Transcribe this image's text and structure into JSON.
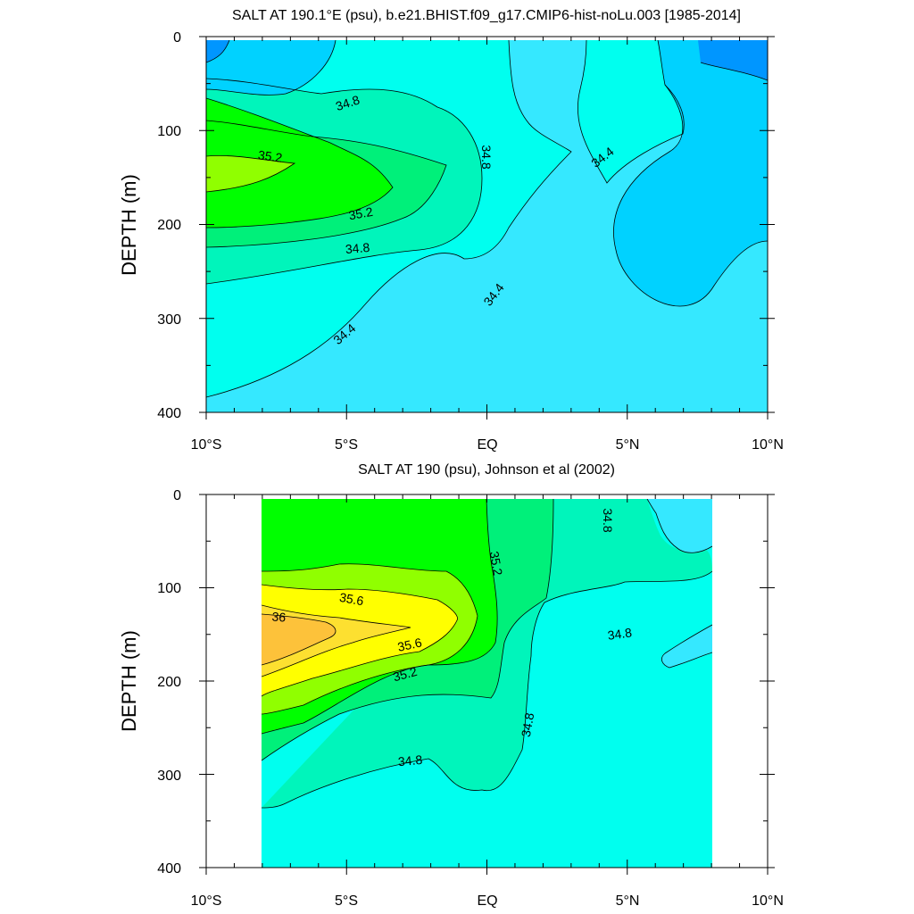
{
  "chart_data": [
    {
      "type": "contour",
      "title": "SALT AT 190.1°E (psu), b.e21.BHIST.f09_g17.CMIP6-hist-noLu.003 [1985-2014]",
      "xlabel": "",
      "ylabel": "DEPTH (m)",
      "xlim": [
        -10,
        10
      ],
      "ylim": [
        400,
        0
      ],
      "x_ticks": [
        "10°S",
        "5°S",
        "EQ",
        "5°N",
        "10°N"
      ],
      "y_ticks": [
        "0",
        "100",
        "200",
        "300",
        "400"
      ],
      "contour_interval": 0.2,
      "contour_labels": [
        {
          "text": "34.8",
          "x": -5,
          "depth": 68
        },
        {
          "text": "35.2",
          "x": -7.7,
          "depth": 126
        },
        {
          "text": "34.8",
          "x": -0.2,
          "depth": 125
        },
        {
          "text": "34.4",
          "x": 4.3,
          "depth": 124
        },
        {
          "text": "35.2",
          "x": -4.5,
          "depth": 190
        },
        {
          "text": "34.8",
          "x": -4.6,
          "depth": 226
        },
        {
          "text": "34.4",
          "x": 0.4,
          "depth": 277
        },
        {
          "text": "34.4",
          "x": -5,
          "depth": 315
        }
      ]
    },
    {
      "type": "contour",
      "title": "SALT AT 190 (psu), Johnson et al (2002)",
      "xlabel": "",
      "ylabel": "DEPTH (m)",
      "xlim": [
        -10,
        10
      ],
      "ylim": [
        400,
        0
      ],
      "data_extent_x": [
        -8,
        8
      ],
      "x_ticks": [
        "10°S",
        "5°S",
        "EQ",
        "5°N",
        "10°N"
      ],
      "y_ticks": [
        "0",
        "100",
        "200",
        "300",
        "400"
      ],
      "contour_interval": 0.2,
      "contour_labels": [
        {
          "text": "34.8",
          "x": 4.2,
          "depth": 30
        },
        {
          "text": "35.2",
          "x": 0.1,
          "depth": 75
        },
        {
          "text": "35.6",
          "x": -4.8,
          "depth": 116
        },
        {
          "text": "36",
          "x": -7.3,
          "depth": 138
        },
        {
          "text": "34.8",
          "x": 4.8,
          "depth": 158
        },
        {
          "text": "35.6",
          "x": -2.7,
          "depth": 170
        },
        {
          "text": "35.2",
          "x": -2.9,
          "depth": 196
        },
        {
          "text": "34.8",
          "x": 1.6,
          "depth": 248
        },
        {
          "text": "34.8",
          "x": -2.7,
          "depth": 295
        }
      ]
    }
  ],
  "palette": {
    "s34.0": "#0096ff",
    "s34.2": "#00d2ff",
    "s34.4": "#35e8ff",
    "s34.6": "#00ffef",
    "s34.8": "#00f5bb",
    "s35.0": "#00f07a",
    "s35.2": "#00ff00",
    "s35.4": "#90ff00",
    "s35.6": "#ffff00",
    "s35.8": "#fde030",
    "s36.0": "#fdc23a"
  }
}
